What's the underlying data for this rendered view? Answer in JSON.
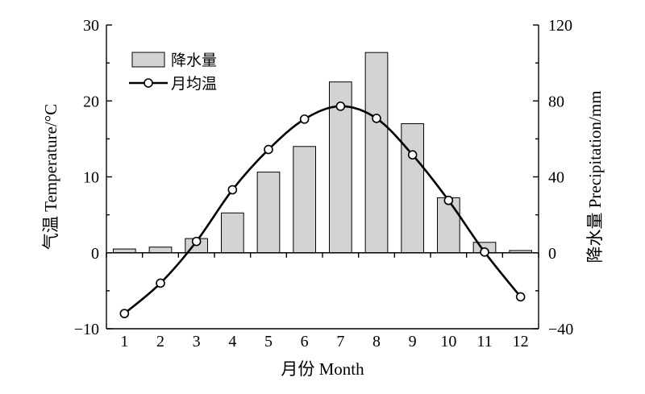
{
  "chart_data": {
    "type": "bar+line",
    "categories": [
      "1",
      "2",
      "3",
      "4",
      "5",
      "6",
      "7",
      "8",
      "9",
      "10",
      "11",
      "12"
    ],
    "xlabel": "月份 Month",
    "ylabel_left": "气温 Temperature/°C",
    "ylabel_right": "降水量 Precipitation/mm",
    "ylim_left": [
      -10,
      30
    ],
    "ylim_right": [
      -40,
      120
    ],
    "yticks_left": [
      "-10",
      "0",
      "10",
      "20",
      "30"
    ],
    "yticks_right": [
      "-40",
      "0",
      "40",
      "80",
      "120"
    ],
    "grid": false,
    "legend_position": "top-left",
    "series": [
      {
        "name": "降水量",
        "type": "bar",
        "axis": "right",
        "values": [
          2,
          3,
          7.5,
          21,
          42.5,
          56,
          90,
          105.5,
          68,
          29,
          5.5,
          1.2
        ]
      },
      {
        "name": "月均温",
        "type": "line",
        "axis": "left",
        "marker": "circle-open",
        "values": [
          -8,
          -4,
          1.5,
          8.3,
          13.6,
          17.6,
          19.3,
          17.7,
          12.9,
          6.9,
          0.1,
          -5.8
        ]
      }
    ],
    "colors": {
      "bar_fill": "#d3d3d3",
      "line": "#000000"
    }
  }
}
